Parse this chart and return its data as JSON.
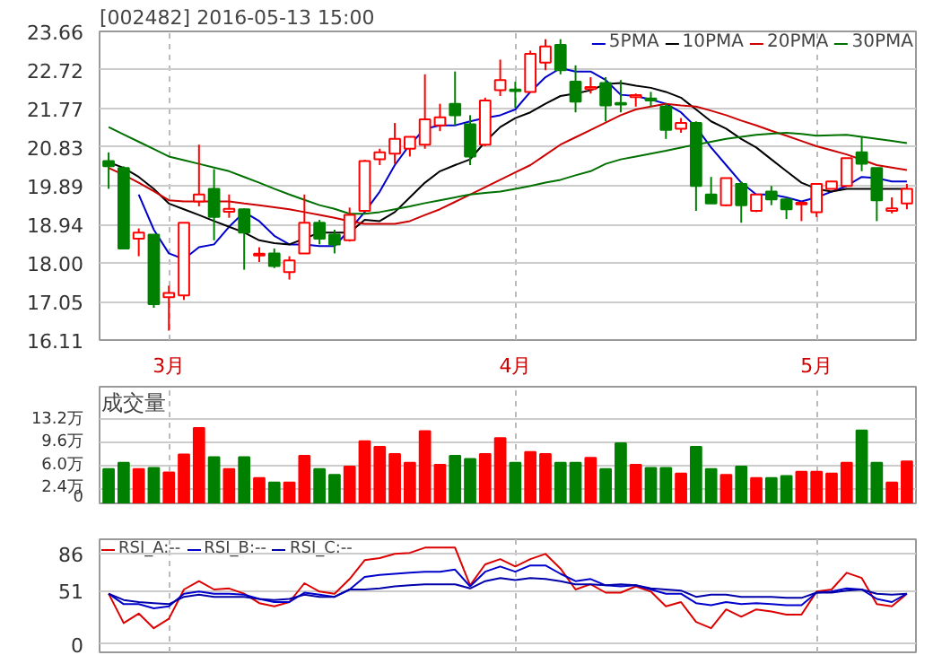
{
  "chart_data": [
    {
      "type": "candlestick",
      "title": "[002482] 2016-05-13 15:00",
      "categories": [
        null,
        null,
        null,
        null,
        "3月",
        null,
        null,
        null,
        null,
        null,
        null,
        null,
        null,
        null,
        null,
        null,
        null,
        null,
        null,
        null,
        null,
        null,
        null,
        null,
        null,
        null,
        null,
        "4月",
        null,
        null,
        null,
        null,
        null,
        null,
        null,
        null,
        null,
        null,
        null,
        null,
        null,
        null,
        null,
        null,
        null,
        null,
        null,
        "5月",
        null,
        null,
        null,
        null,
        null,
        null
      ],
      "ohlc": [
        [
          20.49,
          20.7,
          19.81,
          20.36
        ],
        [
          20.32,
          20.36,
          18.35,
          18.35
        ],
        [
          18.59,
          18.84,
          18.16,
          18.74
        ],
        [
          18.69,
          18.69,
          16.9,
          16.99
        ],
        [
          17.16,
          17.44,
          16.34,
          17.26
        ],
        [
          17.2,
          18.98,
          17.09,
          18.98
        ],
        [
          19.5,
          20.89,
          19.38,
          19.67
        ],
        [
          19.81,
          20.29,
          18.55,
          19.12
        ],
        [
          19.25,
          19.67,
          19.1,
          19.32
        ],
        [
          19.31,
          19.33,
          17.83,
          18.74
        ],
        [
          18.18,
          18.38,
          18.02,
          18.22
        ],
        [
          18.23,
          18.35,
          17.87,
          17.92
        ],
        [
          17.77,
          18.16,
          17.59,
          18.06
        ],
        [
          18.23,
          19.67,
          18.23,
          18.98
        ],
        [
          18.98,
          19.05,
          18.45,
          18.59
        ],
        [
          18.69,
          18.81,
          18.23,
          18.45
        ],
        [
          18.55,
          19.35,
          18.52,
          19.17
        ],
        [
          19.27,
          20.52,
          19.24,
          20.49
        ],
        [
          20.53,
          20.79,
          20.39,
          20.7
        ],
        [
          20.67,
          21.42,
          20.42,
          21.03
        ],
        [
          20.79,
          21.08,
          20.6,
          21.08
        ],
        [
          20.89,
          22.61,
          20.79,
          21.51
        ],
        [
          21.36,
          21.89,
          21.22,
          21.56
        ],
        [
          21.89,
          22.68,
          21.36,
          21.61
        ],
        [
          21.39,
          21.61,
          20.39,
          20.6
        ],
        [
          20.89,
          22.04,
          20.85,
          21.97
        ],
        [
          22.22,
          22.97,
          22.08,
          22.47
        ],
        [
          22.24,
          22.43,
          21.79,
          22.2
        ],
        [
          22.18,
          23.19,
          22.18,
          23.11
        ],
        [
          22.9,
          23.47,
          22.71,
          23.29
        ],
        [
          23.33,
          23.47,
          22.61,
          22.71
        ],
        [
          22.43,
          22.83,
          21.68,
          21.94
        ],
        [
          22.25,
          22.54,
          22.14,
          22.3
        ],
        [
          22.4,
          22.54,
          21.46,
          21.85
        ],
        [
          21.91,
          22.47,
          21.68,
          21.87
        ],
        [
          22.05,
          22.14,
          21.82,
          22.1
        ],
        [
          22.02,
          22.18,
          21.82,
          21.97
        ],
        [
          21.82,
          21.89,
          21.03,
          21.25
        ],
        [
          21.28,
          21.54,
          21.18,
          21.42
        ],
        [
          21.42,
          21.46,
          19.27,
          19.88
        ],
        [
          19.67,
          20.1,
          19.45,
          19.45
        ],
        [
          19.41,
          20.07,
          19.38,
          20.07
        ],
        [
          19.93,
          19.99,
          18.98,
          19.41
        ],
        [
          19.27,
          19.67,
          19.24,
          19.67
        ],
        [
          19.74,
          19.88,
          19.41,
          19.55
        ],
        [
          19.55,
          19.6,
          19.07,
          19.31
        ],
        [
          19.43,
          19.5,
          19.02,
          19.47
        ],
        [
          19.24,
          19.93,
          19.12,
          19.93
        ],
        [
          19.81,
          19.99,
          19.81,
          19.99
        ],
        [
          19.88,
          20.56,
          19.88,
          20.56
        ],
        [
          20.7,
          21.08,
          20.24,
          20.42
        ],
        [
          20.32,
          20.32,
          19.02,
          19.53
        ],
        [
          19.27,
          19.6,
          19.21,
          19.33
        ],
        [
          19.45,
          19.93,
          19.31,
          19.81
        ]
      ],
      "colors": [
        "#008000",
        "#008000",
        "#ff0000",
        "#008000",
        "#ff0000",
        "#ff0000",
        "#ff0000",
        "#008000",
        "#ff0000",
        "#008000",
        "#ff0000",
        "#008000",
        "#ff0000",
        "#ff0000",
        "#008000",
        "#008000",
        "#ff0000",
        "#ff0000",
        "#ff0000",
        "#ff0000",
        "#ff0000",
        "#ff0000",
        "#ff0000",
        "#008000",
        "#008000",
        "#ff0000",
        "#ff0000",
        "#008000",
        "#ff0000",
        "#ff0000",
        "#008000",
        "#008000",
        "#ff0000",
        "#008000",
        "#008000",
        "#ff0000",
        "#008000",
        "#008000",
        "#ff0000",
        "#008000",
        "#008000",
        "#ff0000",
        "#008000",
        "#ff0000",
        "#008000",
        "#008000",
        "#ff0000",
        "#ff0000",
        "#ff0000",
        "#ff0000",
        "#008000",
        "#008000",
        "#ff0000",
        "#ff0000"
      ],
      "series": [
        {
          "type": "line",
          "name": "5PMA",
          "color": "#0000cc",
          "values": [
            null,
            null,
            19.67,
            18.81,
            18.23,
            18.09,
            18.38,
            18.45,
            18.88,
            19.24,
            19.02,
            18.66,
            18.45,
            18.45,
            18.41,
            18.41,
            18.81,
            19.24,
            19.74,
            20.39,
            20.89,
            21.28,
            21.36,
            21.36,
            21.46,
            21.54,
            21.61,
            21.75,
            22.18,
            22.54,
            22.76,
            22.68,
            22.68,
            22.47,
            22.11,
            22.08,
            21.99,
            21.89,
            21.68,
            21.32,
            20.82,
            20.39,
            19.96,
            19.67,
            19.67,
            19.6,
            19.5,
            19.6,
            19.74,
            19.88,
            20.1,
            20.07,
            19.99,
            19.99
          ]
        },
        {
          "type": "line",
          "name": "10PMA",
          "color": "#000000",
          "values": [
            20.46,
            20.32,
            20.1,
            19.81,
            19.45,
            19.31,
            19.17,
            19.02,
            18.88,
            18.74,
            18.55,
            18.48,
            18.45,
            18.59,
            18.74,
            18.74,
            18.74,
            19.05,
            19.02,
            19.24,
            19.6,
            19.96,
            20.24,
            20.39,
            20.53,
            20.96,
            21.32,
            21.54,
            21.68,
            21.89,
            22.08,
            22.14,
            22.22,
            22.37,
            22.4,
            22.33,
            22.28,
            22.18,
            22.04,
            21.75,
            21.46,
            21.28,
            21.03,
            20.82,
            20.53,
            20.24,
            19.96,
            19.81,
            19.74,
            19.81,
            19.81,
            19.81,
            19.81,
            19.81
          ]
        },
        {
          "type": "line",
          "name": "20PMA",
          "color": "#cc0000",
          "values": [
            20.32,
            20.15,
            19.96,
            19.75,
            19.53,
            19.5,
            19.5,
            19.5,
            19.5,
            19.45,
            19.41,
            19.36,
            19.31,
            19.24,
            19.17,
            19.1,
            19.02,
            18.95,
            18.95,
            18.95,
            19.02,
            19.17,
            19.31,
            19.49,
            19.67,
            19.85,
            20.03,
            20.21,
            20.39,
            20.64,
            20.89,
            21.07,
            21.25,
            21.43,
            21.61,
            21.75,
            21.82,
            21.89,
            21.85,
            21.82,
            21.72,
            21.61,
            21.48,
            21.36,
            21.23,
            21.11,
            20.98,
            20.85,
            20.75,
            20.65,
            20.52,
            20.39,
            20.33,
            20.27
          ]
        },
        {
          "type": "line",
          "name": "30PMA",
          "color": "#007000",
          "values": [
            21.32,
            21.14,
            20.96,
            20.78,
            20.6,
            20.51,
            20.42,
            20.33,
            20.24,
            20.1,
            19.96,
            19.81,
            19.67,
            19.54,
            19.41,
            19.32,
            19.2,
            19.2,
            19.24,
            19.31,
            19.38,
            19.46,
            19.53,
            19.6,
            19.67,
            19.71,
            19.74,
            19.81,
            19.88,
            19.96,
            20.03,
            20.14,
            20.24,
            20.42,
            20.53,
            20.6,
            20.67,
            20.74,
            20.82,
            20.89,
            20.96,
            21.03,
            21.08,
            21.13,
            21.16,
            21.18,
            21.15,
            21.11,
            21.12,
            21.13,
            21.08,
            21.03,
            20.98,
            20.93
          ]
        }
      ],
      "ylim": [
        16.11,
        23.66
      ],
      "yticks": [
        16.11,
        17.05,
        {
          "value": 18,
          "label": "18.00"
        },
        18.94,
        19.89,
        20.83,
        21.77,
        22.72,
        23.66
      ],
      "grid": true,
      "legend": "top right"
    },
    {
      "type": "bar",
      "title": "成交量",
      "categories": [
        null,
        null,
        null,
        null,
        null,
        null,
        null,
        null,
        null,
        null,
        null,
        null,
        null,
        null,
        null,
        null,
        null,
        null,
        null,
        null,
        null,
        null,
        null,
        null,
        null,
        null,
        null,
        null,
        null,
        null,
        null,
        null,
        null,
        null,
        null,
        null,
        null,
        null,
        null,
        null,
        null,
        null,
        null,
        null,
        null,
        null,
        null,
        null,
        null,
        null,
        null,
        null,
        null,
        null
      ],
      "values": [
        5.4,
        6.4,
        5.4,
        5.6,
        4.9,
        7.7,
        11.9,
        7.3,
        5.4,
        7.3,
        4.0,
        3.3,
        3.3,
        7.5,
        5.4,
        4.5,
        5.8,
        9.8,
        8.9,
        7.8,
        6.4,
        11.4,
        6.1,
        7.5,
        7.0,
        7.8,
        10.3,
        6.4,
        8.1,
        7.8,
        6.4,
        6.4,
        7.2,
        5.4,
        9.5,
        6.1,
        5.6,
        5.6,
        4.7,
        8.9,
        5.4,
        4.5,
        5.8,
        4.0,
        4.0,
        4.3,
        5.0,
        5.0,
        4.7,
        6.4,
        11.5,
        6.4,
        3.3,
        6.6
      ],
      "colors": [
        "#008000",
        "#008000",
        "#ff0000",
        "#008000",
        "#ff0000",
        "#ff0000",
        "#ff0000",
        "#008000",
        "#ff0000",
        "#008000",
        "#ff0000",
        "#008000",
        "#ff0000",
        "#ff0000",
        "#008000",
        "#008000",
        "#ff0000",
        "#ff0000",
        "#ff0000",
        "#ff0000",
        "#ff0000",
        "#ff0000",
        "#ff0000",
        "#008000",
        "#008000",
        "#ff0000",
        "#ff0000",
        "#008000",
        "#ff0000",
        "#ff0000",
        "#008000",
        "#008000",
        "#ff0000",
        "#008000",
        "#008000",
        "#ff0000",
        "#008000",
        "#008000",
        "#ff0000",
        "#008000",
        "#008000",
        "#ff0000",
        "#008000",
        "#ff0000",
        "#008000",
        "#008000",
        "#ff0000",
        "#ff0000",
        "#ff0000",
        "#ff0000",
        "#008000",
        "#008000",
        "#ff0000",
        "#ff0000"
      ],
      "ylim": [
        0,
        18.4
      ],
      "yticks": [
        0,
        {
          "value": 2.4,
          "label": "2.4万"
        },
        {
          "value": 6.0,
          "label": "6.0万"
        },
        {
          "value": 9.6,
          "label": "9.6万"
        },
        {
          "value": 13.2,
          "label": "13.2万"
        }
      ],
      "grid": true,
      "tick_labels": "y"
    },
    {
      "type": "line",
      "categories": [
        null,
        null,
        null,
        null,
        null,
        null,
        null,
        null,
        null,
        null,
        null,
        null,
        null,
        null,
        null,
        null,
        null,
        null,
        null,
        null,
        null,
        null,
        null,
        null,
        null,
        null,
        null,
        null,
        null,
        null,
        null,
        null,
        null,
        null,
        null,
        null,
        null,
        null,
        null,
        null,
        null,
        null,
        null,
        null,
        null,
        null,
        null,
        null,
        null,
        null,
        null,
        null,
        null,
        null
      ],
      "series": [
        {
          "name": "RSI_A:--",
          "color": "#dd0000",
          "values": [
            48,
            20,
            29,
            15,
            24,
            52,
            60,
            52,
            53,
            48,
            39,
            36,
            40,
            58,
            50,
            48,
            62,
            80,
            82,
            86,
            87,
            92,
            92,
            92,
            56,
            76,
            81,
            74,
            81,
            86,
            72,
            52,
            57,
            49,
            49,
            55,
            50,
            36,
            40,
            21,
            15,
            33,
            26,
            33,
            31,
            28,
            28,
            50,
            52,
            68,
            63,
            38,
            36,
            48
          ]
        },
        {
          "name": "RSI_B:--",
          "color": "#0000cc",
          "values": [
            48,
            38,
            38,
            34,
            36,
            48,
            50,
            48,
            48,
            47,
            43,
            40,
            40,
            49,
            47,
            45,
            52,
            64,
            66,
            67,
            68,
            69,
            69,
            71,
            55,
            69,
            74,
            69,
            75,
            75,
            67,
            60,
            62,
            56,
            55,
            56,
            52,
            48,
            48,
            39,
            37,
            40,
            38,
            39,
            38,
            37,
            37,
            49,
            50,
            53,
            52,
            43,
            40,
            48
          ]
        },
        {
          "name": "RSI_C:--",
          "color": "#0000aa",
          "values": [
            48,
            42,
            40,
            39,
            38,
            45,
            47,
            45,
            45,
            45,
            43,
            42,
            43,
            47,
            45,
            45,
            52,
            52,
            53,
            55,
            56,
            57,
            57,
            57,
            53,
            60,
            63,
            61,
            63,
            62,
            60,
            57,
            57,
            56,
            57,
            56,
            53,
            52,
            51,
            45,
            47,
            47,
            45,
            45,
            45,
            44,
            44,
            49,
            49,
            51,
            52,
            48,
            47,
            48
          ]
        }
      ],
      "ylim": [
        -8,
        100
      ],
      "yticks": [
        0,
        51,
        86
      ],
      "grid": true,
      "legend": "top left",
      "tick_labels": "y"
    }
  ]
}
